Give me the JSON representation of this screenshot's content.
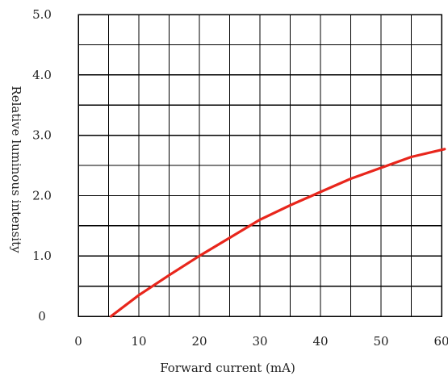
{
  "chart_data": {
    "type": "line",
    "title": "",
    "xlabel": "Forward current (mA)",
    "ylabel": "Relative luminous intensity",
    "xlim": [
      0,
      60
    ],
    "ylim": [
      0,
      5
    ],
    "x_ticks": [
      0,
      10,
      20,
      30,
      40,
      50,
      60
    ],
    "x_tick_labels": [
      "0",
      "10",
      "20",
      "30",
      "40",
      "50",
      "60"
    ],
    "y_ticks": [
      0,
      1,
      2,
      3,
      4,
      5
    ],
    "y_tick_labels": [
      "0",
      "1.0",
      "2.0",
      "3.0",
      "4.0",
      "5.0"
    ],
    "x_minor_step": 5,
    "y_minor_step": 0.5,
    "grid": true,
    "colors": {
      "line": "#e8261c",
      "grid": "#000000",
      "text": "#222222"
    },
    "series": [
      {
        "x": [
          5.4,
          10,
          15,
          20,
          25,
          30,
          35,
          40,
          45,
          50,
          55,
          60.5
        ],
        "y": [
          0,
          0.35,
          0.68,
          1.0,
          1.3,
          1.6,
          1.84,
          2.06,
          2.28,
          2.46,
          2.64,
          2.77
        ]
      }
    ]
  }
}
